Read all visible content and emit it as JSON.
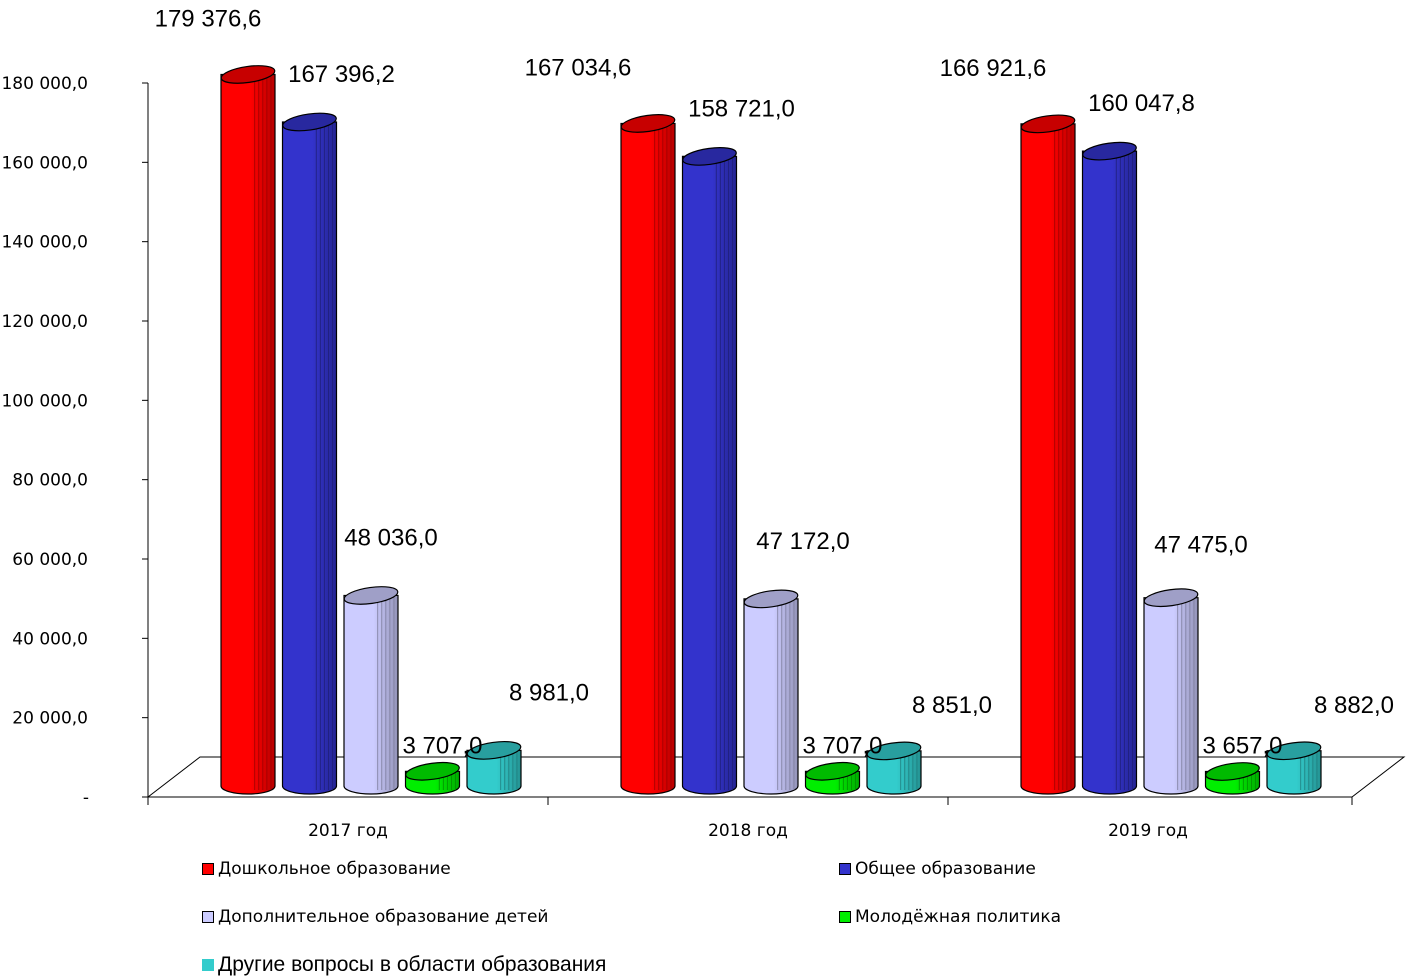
{
  "chart_data": {
    "type": "bar",
    "categories": [
      "2017 год",
      "2018 год",
      "2019 год"
    ],
    "yticks": [
      "-",
      "20 000,0",
      "40 000,0",
      "60 000,0",
      "80 000,0",
      "100 000,0",
      "120 000,0",
      "140 000,0",
      "160 000,0",
      "180 000,0"
    ],
    "ylim": [
      0,
      180000
    ],
    "grid": false,
    "legend_position": "bottom",
    "series": [
      {
        "name": "Дошкольное образование",
        "color": "#ff0000",
        "values": [
          179376.6,
          167034.6,
          166921.6
        ],
        "labels": [
          "179 376,6",
          "167 034,6",
          "166 921,6"
        ]
      },
      {
        "name": "Общее образование",
        "color": "#3333cc",
        "values": [
          167396.2,
          158721.0,
          160047.8
        ],
        "labels": [
          "167 396,2",
          "158 721,0",
          "160 047,8"
        ]
      },
      {
        "name": "Дополнительное образование детей",
        "color": "#ccccff",
        "values": [
          48036.0,
          47172.0,
          47475.0
        ],
        "labels": [
          "48 036,0",
          "47 172,0",
          "47 475,0"
        ]
      },
      {
        "name": "Молодёжная политика",
        "color": "#00ee00",
        "values": [
          3707.0,
          3707.0,
          3657.0
        ],
        "labels": [
          "3 707,0",
          "3 707,0",
          "3 657,0"
        ]
      },
      {
        "name": "Другие вопросы в области образования",
        "color": "#33cccc",
        "values": [
          8981.0,
          8851.0,
          8882.0
        ],
        "labels": [
          "8 981,0",
          "8 851,0",
          "8 882,0"
        ]
      }
    ]
  }
}
